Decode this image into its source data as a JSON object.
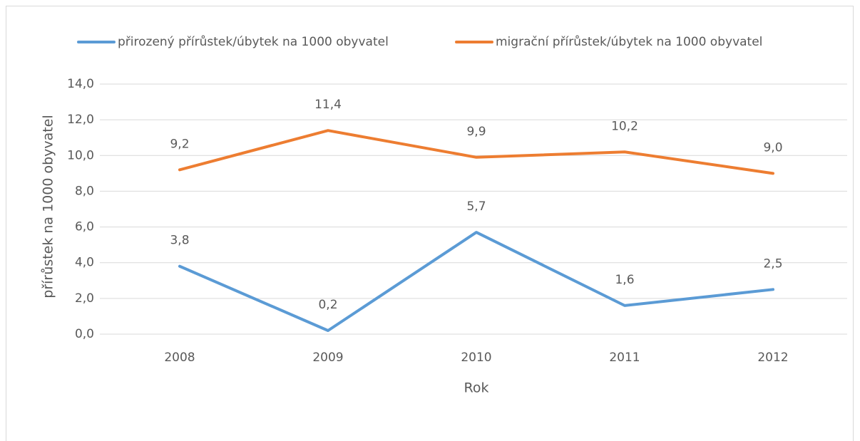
{
  "chart_data": {
    "type": "line",
    "categories": [
      "2008",
      "2009",
      "2010",
      "2011",
      "2012"
    ],
    "series": [
      {
        "name": "přirozený přírůstek/úbytek na 1000 obyvatel",
        "color": "#5b9bd5",
        "values": [
          3.8,
          0.2,
          5.7,
          1.6,
          2.5
        ],
        "value_labels": [
          "3,8",
          "0,2",
          "5,7",
          "1,6",
          "2,5"
        ]
      },
      {
        "name": "migrační přírůstek/úbytek na 1000 obyvatel",
        "color": "#ed7d31",
        "values": [
          9.2,
          11.4,
          9.9,
          10.2,
          9.0
        ],
        "value_labels": [
          "9,2",
          "11,4",
          "9,9",
          "10,2",
          "9,0"
        ]
      }
    ],
    "xlabel": "Rok",
    "ylabel": "přírůstek na 1000 obyvatel",
    "ylim": [
      0,
      14
    ],
    "yticks": [
      {
        "value": 0,
        "label": "0,0"
      },
      {
        "value": 2,
        "label": "2,0"
      },
      {
        "value": 4,
        "label": "4,0"
      },
      {
        "value": 6,
        "label": "6,0"
      },
      {
        "value": 8,
        "label": "8,0"
      },
      {
        "value": 10,
        "label": "10,0"
      },
      {
        "value": 12,
        "label": "12,0"
      },
      {
        "value": 14,
        "label": "14,0"
      }
    ],
    "grid": true,
    "legend": "top"
  }
}
